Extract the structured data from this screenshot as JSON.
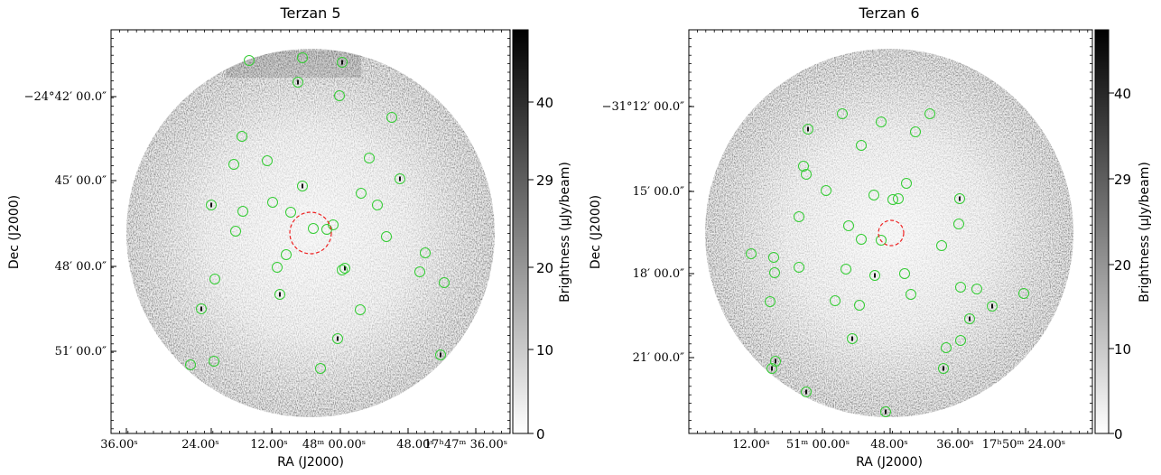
{
  "panels": [
    {
      "id": "terzan-5",
      "title": "Terzan 5",
      "xlabel": "RA (J2000)",
      "ylabel": "Dec (J2000)",
      "x_ticks": [
        "36.00ˢ",
        "24.00ˢ",
        "12.00ˢ",
        "48ᵐ 00.00ˢ",
        "48.00ˢ",
        "17ʰ47ᵐ 36.00ˢ"
      ],
      "y_ticks": [
        "−24°42′ 00.0″",
        "45′ 00.0″",
        "48′ 00.0″",
        "51′ 00.0″"
      ],
      "colorbar": {
        "label": "Brightness (μJy/beam)",
        "ticks": [
          "40",
          "29",
          "20",
          "10",
          "0"
        ],
        "vmin": 0,
        "vmax": 47
      },
      "colormap": "gray_r",
      "source_marker_color": "#33cc33",
      "target_marker_color": "#ee2222"
    },
    {
      "id": "terzan-6",
      "title": "Terzan 6",
      "xlabel": "RA (J2000)",
      "ylabel": "Dec (J2000)",
      "x_ticks": [
        "12.00ˢ",
        "51ᵐ 00.00ˢ",
        "48.00ˢ",
        "36.00ˢ",
        "17ʰ50ᵐ 24.00ˢ"
      ],
      "y_ticks": [
        "−31°12′ 00.0″",
        "15′ 00.0″",
        "18′ 00.0″",
        "21′ 00.0″"
      ],
      "colorbar": {
        "label": "Brightness (μJy/beam)",
        "ticks": [
          "40",
          "29",
          "20",
          "10",
          "0"
        ],
        "vmin": 0,
        "vmax": 47
      },
      "colormap": "gray_r",
      "source_marker_color": "#33cc33",
      "target_marker_color": "#ee2222"
    }
  ]
}
